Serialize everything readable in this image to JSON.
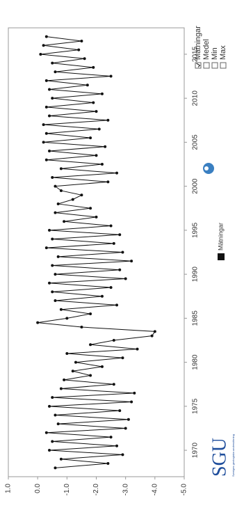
{
  "chart_data": {
    "type": "line",
    "x": [
      1968.0,
      1968.5,
      1969.0,
      1969.5,
      1970.0,
      1970.5,
      1971.0,
      1971.5,
      1972.0,
      1972.5,
      1973.0,
      1973.5,
      1974.0,
      1974.5,
      1975.0,
      1975.5,
      1976.0,
      1976.5,
      1977.0,
      1977.5,
      1978.0,
      1978.5,
      1979.0,
      1979.5,
      1980.0,
      1980.5,
      1981.0,
      1981.5,
      1982.0,
      1982.5,
      1983.0,
      1983.5,
      1984.0,
      1984.5,
      1985.0,
      1985.5,
      1986.0,
      1986.5,
      1987.0,
      1987.5,
      1988.0,
      1988.5,
      1989.0,
      1989.5,
      1990.0,
      1990.5,
      1991.0,
      1991.5,
      1992.0,
      1992.5,
      1993.0,
      1993.5,
      1994.0,
      1994.5,
      1995.0,
      1995.5,
      1996.0,
      1996.5,
      1997.0,
      1997.5,
      1998.0,
      1998.5,
      1999.0,
      1999.5,
      2000.0,
      2000.5,
      2001.0,
      2001.5,
      2002.0,
      2002.5,
      2003.0,
      2003.5,
      2004.0,
      2004.5,
      2005.0,
      2005.5,
      2006.0,
      2006.5,
      2007.0,
      2007.5,
      2008.0,
      2008.5,
      2009.0,
      2009.5,
      2010.0,
      2010.5,
      2011.0,
      2011.5,
      2012.0,
      2012.5,
      2013.0,
      2013.5,
      2014.0,
      2014.5,
      2015.0,
      2015.5,
      2016.0,
      2016.5,
      2017.0
    ],
    "series": [
      {
        "name": "Mätningar",
        "color": "#111111",
        "values": [
          -0.6,
          -2.4,
          -0.8,
          -2.9,
          -0.4,
          -2.7,
          -0.5,
          -2.5,
          -0.3,
          -3.0,
          -0.7,
          -3.1,
          -0.6,
          -2.8,
          -0.4,
          -3.2,
          -0.5,
          -3.3,
          -0.8,
          -2.6,
          -0.9,
          -1.8,
          -1.2,
          -2.2,
          -1.3,
          -2.9,
          -1.0,
          -3.4,
          -1.8,
          -2.6,
          -3.9,
          -4.0,
          -1.5,
          0.0,
          -1.0,
          -1.8,
          -0.8,
          -2.7,
          -0.6,
          -2.2,
          -0.5,
          -2.5,
          -0.4,
          -3.0,
          -0.6,
          -2.8,
          -0.5,
          -3.2,
          -0.7,
          -2.9,
          -0.3,
          -2.6,
          -0.5,
          -2.8,
          -0.4,
          -2.5,
          -0.9,
          -2.0,
          -0.6,
          -1.8,
          -0.7,
          -1.2,
          -1.5,
          -0.8,
          -0.6,
          -2.4,
          -0.5,
          -2.7,
          -0.8,
          -2.2,
          -0.3,
          -2.0,
          -0.4,
          -2.3,
          -0.2,
          -1.8,
          -0.3,
          -2.1,
          -0.2,
          -2.4,
          -0.4,
          -2.0,
          -0.3,
          -1.9,
          -0.5,
          -2.2,
          -0.4,
          -1.7,
          -0.3,
          -2.5,
          -0.6,
          -1.9,
          -0.5,
          -1.6,
          -0.1,
          -1.4,
          -0.2,
          -1.5,
          -0.3
        ]
      }
    ],
    "xlim": [
      1967,
      2018
    ],
    "xticks": [
      1970,
      1975,
      1980,
      1985,
      1990,
      1995,
      2000,
      2005,
      2010,
      2015
    ],
    "ylim": [
      -5,
      1
    ],
    "yticks": [
      {
        "value": 1,
        "label": "1.0"
      },
      {
        "value": 0,
        "label": "0.0"
      },
      {
        "value": -1,
        "label": "-1.0"
      },
      {
        "value": -2,
        "label": "-2.0"
      },
      {
        "value": -3,
        "label": "-3.0"
      },
      {
        "value": -4,
        "label": "-4.0"
      },
      {
        "value": -5,
        "label": "-5.0"
      }
    ],
    "grid": false,
    "options": [
      "Mätningar",
      "Medel",
      "Min",
      "Max"
    ],
    "options_checked": [
      true,
      false,
      false,
      false
    ],
    "logo": "SGU",
    "logo_subtitle": "Sveriges geologiska undersökning"
  }
}
